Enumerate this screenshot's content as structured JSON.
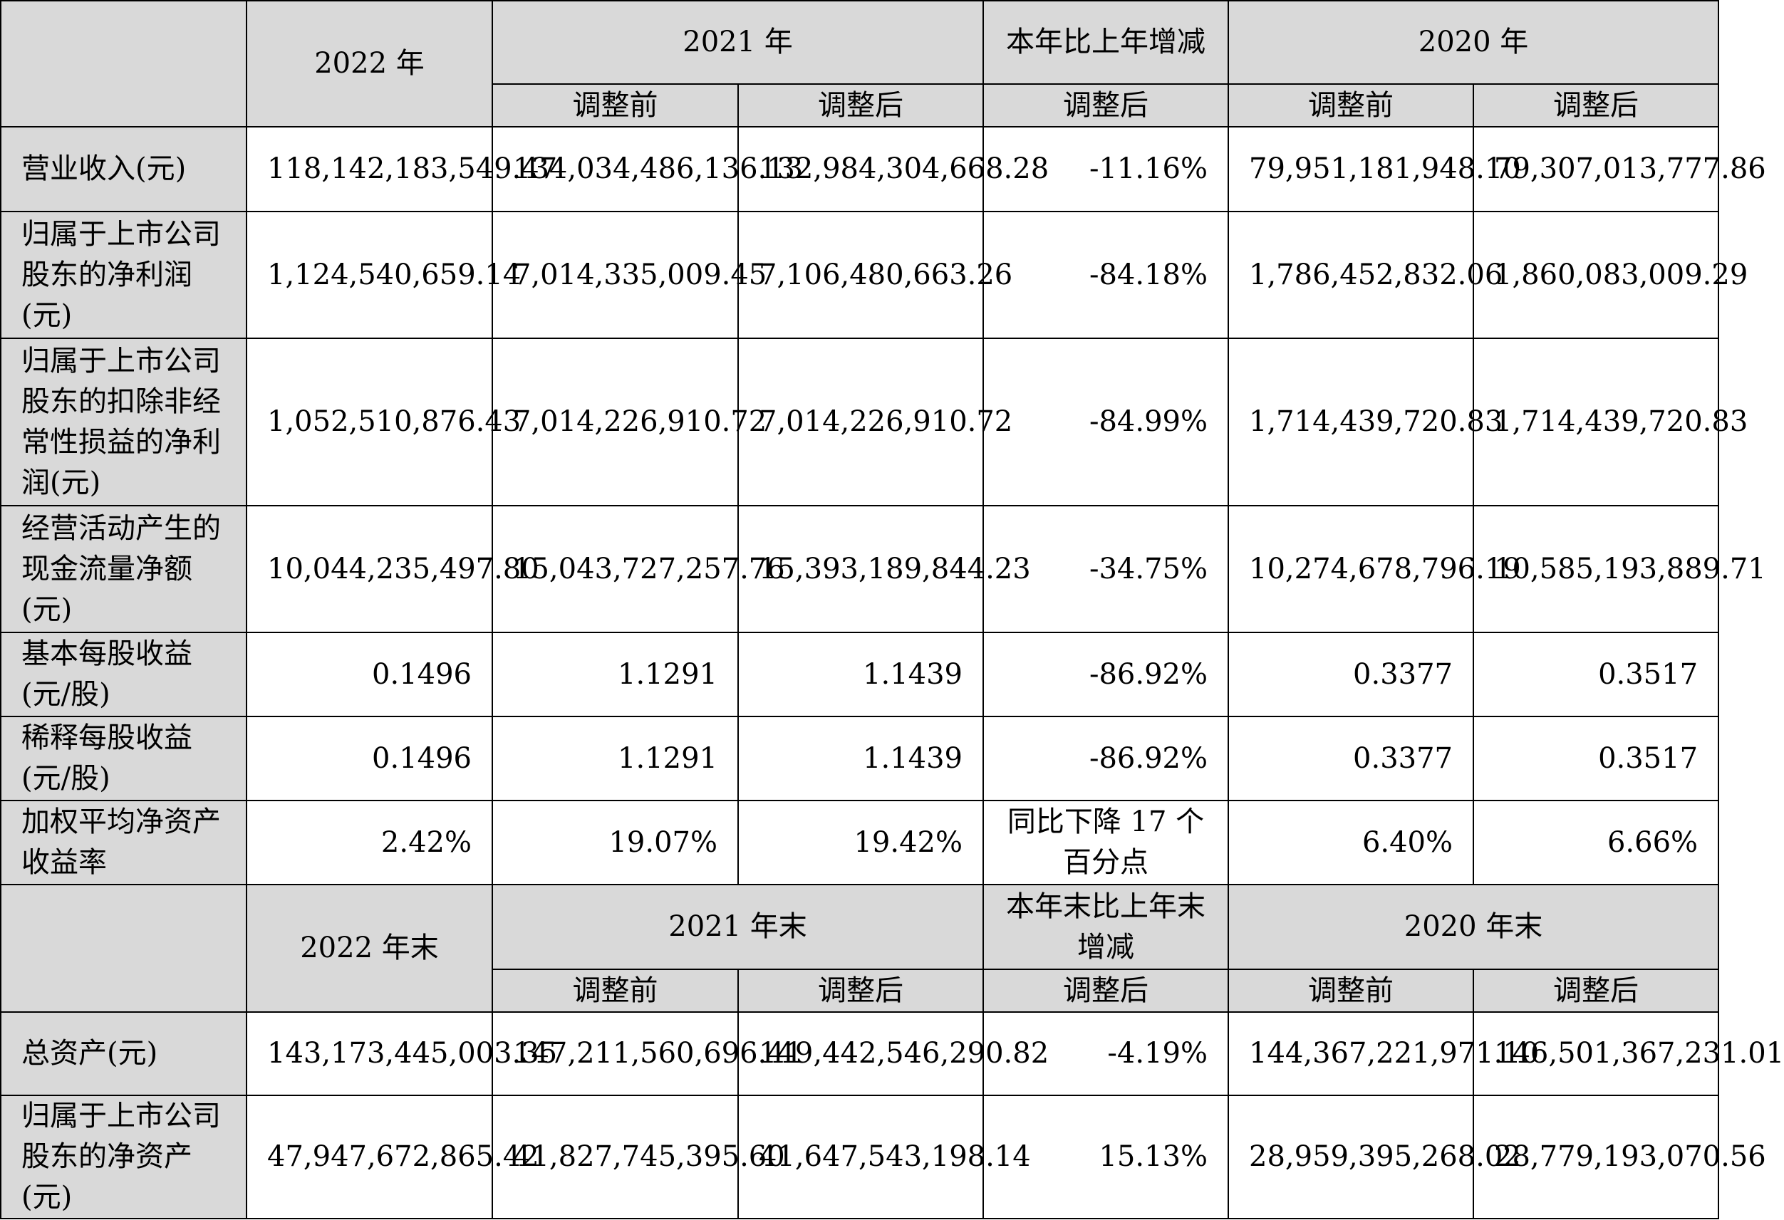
{
  "header1": {
    "year_2022": "2022 年",
    "year_2021": "2021 年",
    "change": "本年比上年增减",
    "year_2020": "2020 年",
    "before": "调整前",
    "after": "调整后",
    "change_after": "调整后"
  },
  "rows1": [
    {
      "label": "营业收入(元)",
      "v2022": "118,142,183,549.47",
      "v2021b": "134,034,486,136.13",
      "v2021a": "132,984,304,668.28",
      "chg": "-11.16%",
      "v2020b": "79,951,181,948.10",
      "v2020a": "79,307,013,777.86"
    },
    {
      "label": "归属于上市公司股东的净利润(元)",
      "v2022": "1,124,540,659.14",
      "v2021b": "7,014,335,009.45",
      "v2021a": "7,106,480,663.26",
      "chg": "-84.18%",
      "v2020b": "1,786,452,832.06",
      "v2020a": "1,860,083,009.29"
    },
    {
      "label": "归属于上市公司股东的扣除非经常性损益的净利润(元)",
      "v2022": "1,052,510,876.43",
      "v2021b": "7,014,226,910.72",
      "v2021a": "7,014,226,910.72",
      "chg": "-84.99%",
      "v2020b": "1,714,439,720.83",
      "v2020a": "1,714,439,720.83"
    },
    {
      "label": "经营活动产生的现金流量净额(元)",
      "v2022": "10,044,235,497.80",
      "v2021b": "15,043,727,257.76",
      "v2021a": "15,393,189,844.23",
      "chg": "-34.75%",
      "v2020b": "10,274,678,796.19",
      "v2020a": "10,585,193,889.71"
    },
    {
      "label": "基本每股收益(元/股)",
      "v2022": "0.1496",
      "v2021b": "1.1291",
      "v2021a": "1.1439",
      "chg": "-86.92%",
      "v2020b": "0.3377",
      "v2020a": "0.3517"
    },
    {
      "label": "稀释每股收益(元/股)",
      "v2022": "0.1496",
      "v2021b": "1.1291",
      "v2021a": "1.1439",
      "chg": "-86.92%",
      "v2020b": "0.3377",
      "v2020a": "0.3517"
    },
    {
      "label": "加权平均净资产收益率",
      "v2022": "2.42%",
      "v2021b": "19.07%",
      "v2021a": "19.42%",
      "chg": "同比下降 17 个百分点",
      "v2020b": "6.40%",
      "v2020a": "6.66%"
    }
  ],
  "header2": {
    "year_2022": "2022 年末",
    "year_2021": "2021 年末",
    "change": "本年末比上年末增减",
    "year_2020": "2020 年末",
    "before": "调整前",
    "after": "调整后",
    "change_after": "调整后"
  },
  "rows2": [
    {
      "label": "总资产(元)",
      "v2022": "143,173,445,003.35",
      "v2021b": "147,211,560,696.41",
      "v2021a": "149,442,546,290.82",
      "chg": "-4.19%",
      "v2020b": "144,367,221,971.10",
      "v2020a": "146,501,367,231.01"
    },
    {
      "label": "归属于上市公司股东的净资产(元)",
      "v2022": "47,947,672,865.42",
      "v2021b": "41,827,745,395.60",
      "v2021a": "41,647,543,198.14",
      "chg": "15.13%",
      "v2020b": "28,959,395,268.02",
      "v2020a": "28,779,193,070.56"
    }
  ]
}
